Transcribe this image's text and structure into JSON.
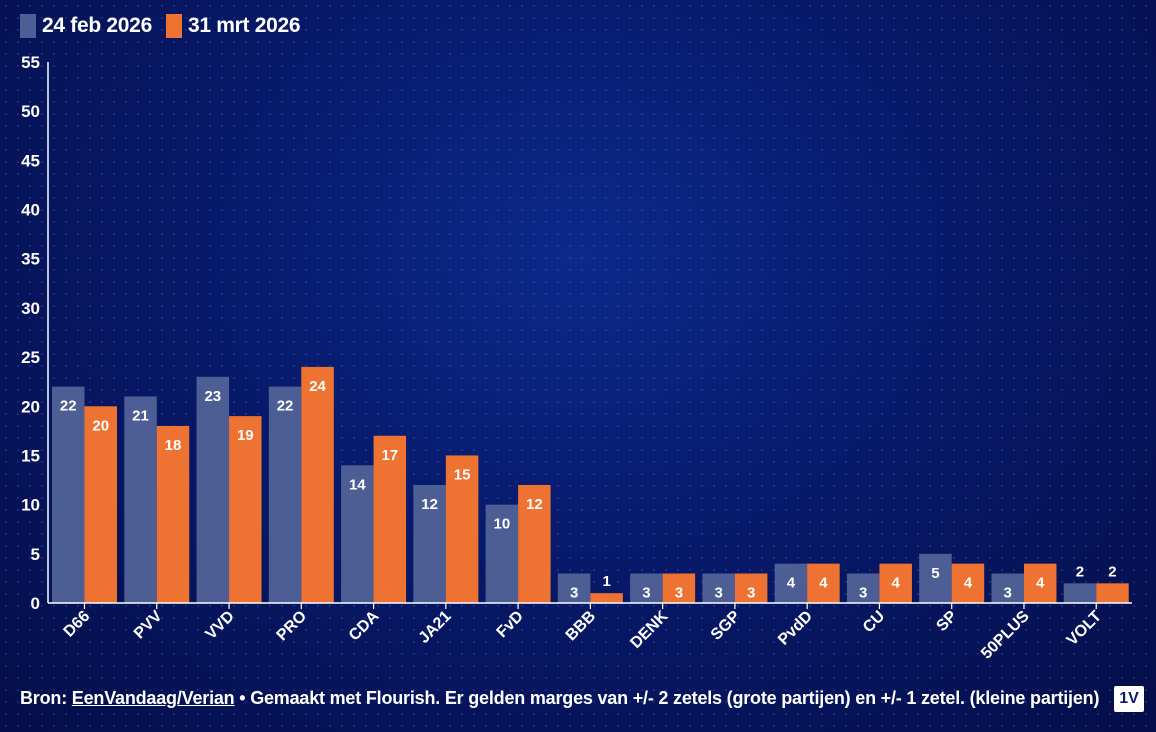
{
  "legend": {
    "series1": "24 feb 2026",
    "series2": "31 mrt 2026"
  },
  "colors": {
    "series1": "#4d5e94",
    "series2": "#ee7333",
    "axis": "#ffffff"
  },
  "footer": {
    "prefix": "Bron: ",
    "source_link": "EenVandaag/Verian",
    "suffix": " • Gemaakt met Flourish. Er gelden marges van +/- 2 zetels (grote partijen) en +/- 1 zetel. (kleine partijen)"
  },
  "logo": {
    "text": "1V",
    "icon": "eenvandaag-logo-icon"
  },
  "chart_data": {
    "type": "bar",
    "title": "",
    "xlabel": "",
    "ylabel": "",
    "ylim": [
      0,
      55
    ],
    "yticks": [
      0,
      5,
      10,
      15,
      20,
      25,
      30,
      35,
      40,
      45,
      50,
      55
    ],
    "grid": false,
    "legend_position": "top-left",
    "categories": [
      "D66",
      "PVV",
      "VVD",
      "PRO",
      "CDA",
      "JA21",
      "FvD",
      "BBB",
      "DENK",
      "SGP",
      "PvdD",
      "CU",
      "SP",
      "50PLUS",
      "VOLT"
    ],
    "series": [
      {
        "name": "24 feb 2026",
        "values": [
          22,
          21,
          23,
          22,
          14,
          12,
          10,
          3,
          3,
          3,
          4,
          3,
          5,
          3,
          2
        ]
      },
      {
        "name": "31 mrt 2026",
        "values": [
          20,
          18,
          19,
          24,
          17,
          15,
          12,
          1,
          3,
          3,
          4,
          4,
          4,
          4,
          2
        ]
      }
    ]
  }
}
